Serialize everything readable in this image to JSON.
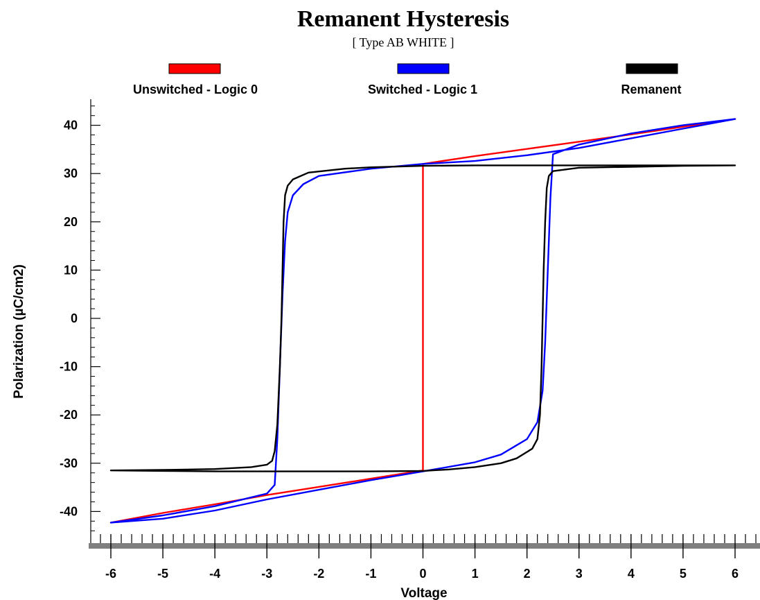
{
  "chart_data": {
    "type": "line",
    "title": "Remanent Hysteresis",
    "subtitle": "[ Type AB WHITE ]",
    "xlabel": "Voltage",
    "ylabel": "Polarization (µC/cm2)",
    "xlim": [
      -6,
      6
    ],
    "ylim": [
      -45,
      45
    ],
    "x_ticks": [
      -6,
      -5,
      -4,
      -3,
      -2,
      -1,
      0,
      1,
      2,
      3,
      4,
      5,
      6
    ],
    "y_ticks": [
      -40,
      -30,
      -20,
      -10,
      0,
      10,
      20,
      30,
      40
    ],
    "grid": false,
    "legend_position": "top",
    "series": [
      {
        "name": "Unswitched - Logic 0",
        "color": "#ff0000",
        "x": [
          0,
          0,
          1,
          2,
          3,
          4,
          5,
          6,
          5,
          4,
          3,
          2,
          1,
          0,
          0,
          -1,
          -2,
          -3,
          -4,
          -5,
          -6,
          -5,
          -4,
          -3,
          -2,
          -1,
          0
        ],
        "y": [
          -31.5,
          32,
          33.6,
          35.1,
          36.6,
          38.1,
          39.7,
          41.3,
          39.7,
          38.1,
          36.6,
          35.1,
          33.6,
          32,
          -31.5,
          -33.2,
          -34.9,
          -36.6,
          -38.5,
          -40.3,
          -42.3,
          -40.3,
          -38.5,
          -36.6,
          -34.9,
          -33.2,
          -31.5
        ]
      },
      {
        "name": "Switched - Logic 1",
        "color": "#0000ff",
        "x": [
          0,
          1,
          1.5,
          2,
          2.2,
          2.3,
          2.35,
          2.4,
          2.45,
          2.5,
          3,
          4,
          5,
          6,
          5,
          4,
          3,
          2,
          1,
          0,
          -1,
          -2,
          -2.3,
          -2.5,
          -2.6,
          -2.65,
          -2.7,
          -2.75,
          -2.8,
          -2.85,
          -3,
          -4,
          -5,
          -6,
          -5,
          -4,
          -3,
          -2,
          -1,
          0
        ],
        "y": [
          -31.7,
          -29.8,
          -28.2,
          -25,
          -21.5,
          -15,
          -5,
          10,
          25,
          34,
          36,
          38.3,
          40,
          41.3,
          39.3,
          37.3,
          35.3,
          33.8,
          32.6,
          32,
          31,
          29.5,
          27.8,
          25.5,
          22,
          16,
          5,
          -10,
          -25,
          -34.5,
          -36.3,
          -38.9,
          -40.8,
          -42.3,
          -41.5,
          -39.8,
          -37.5,
          -35.5,
          -33.5,
          -31.7
        ]
      },
      {
        "name": "Remanent",
        "color": "#000000",
        "x": [
          -6,
          -5,
          -4,
          -3.3,
          -3,
          -2.9,
          -2.85,
          -2.8,
          -2.75,
          -2.72,
          -2.7,
          -2.68,
          -2.65,
          -2.6,
          -2.5,
          -2.2,
          -1.5,
          -1,
          0,
          1,
          2,
          3,
          4,
          5,
          6,
          5,
          4,
          3,
          2.5,
          2.42,
          2.38,
          2.35,
          2.32,
          2.3,
          2.28,
          2.25,
          2.2,
          2.1,
          1.8,
          1.5,
          1,
          0.5,
          0,
          -1,
          -2,
          -3,
          -4,
          -5,
          -6
        ],
        "y": [
          -31.5,
          -31.4,
          -31.2,
          -30.8,
          -30.3,
          -29.5,
          -27.5,
          -22,
          -10,
          0,
          10,
          20,
          25.5,
          27.5,
          28.8,
          30.2,
          31,
          31.3,
          31.6,
          31.7,
          31.7,
          31.7,
          31.7,
          31.7,
          31.7,
          31.6,
          31.4,
          31.2,
          30.5,
          29.5,
          27,
          20,
          10,
          0,
          -10,
          -20,
          -25,
          -27,
          -29,
          -30,
          -30.8,
          -31.3,
          -31.6,
          -31.7,
          -31.7,
          -31.7,
          -31.7,
          -31.6,
          -31.5
        ]
      }
    ]
  }
}
